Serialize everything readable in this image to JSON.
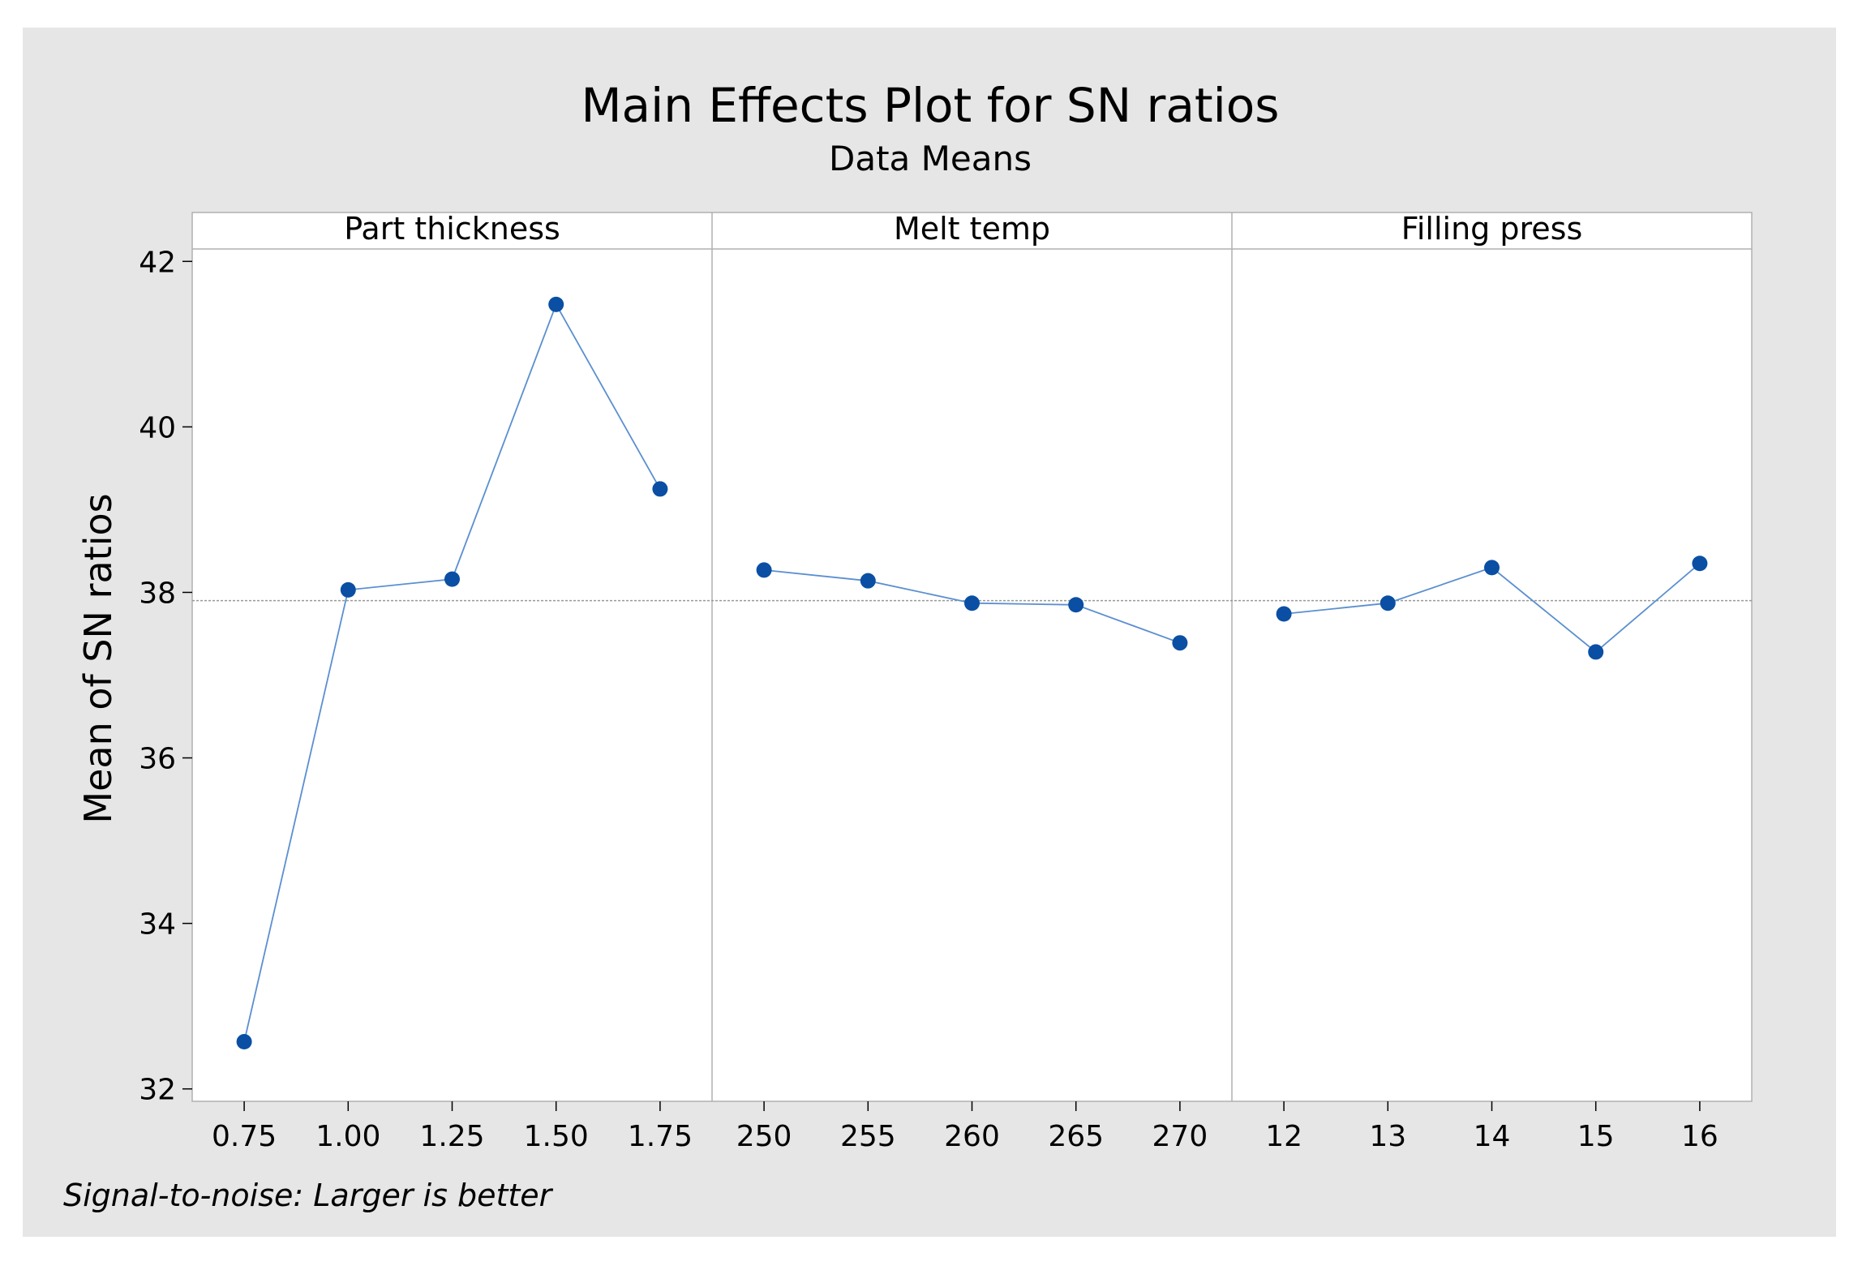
{
  "chart_data": {
    "type": "line",
    "title": "Main Effects Plot for SN ratios",
    "subtitle": "Data Means",
    "ylabel": "Mean of SN ratios",
    "footnote": "Signal-to-noise: Larger is better",
    "ylim": [
      31.85,
      42.15
    ],
    "yticks": [
      "32",
      "34",
      "36",
      "38",
      "40",
      "42"
    ],
    "overall_mean": 37.9,
    "colors": {
      "background": "#e6e6e6",
      "plot_area": "#ffffff",
      "line": "#5b8fd0",
      "marker": "#0a4fa3",
      "reference_line": "#999999",
      "grid_border": "#b0b0b0"
    },
    "panels": [
      {
        "name": "Part thickness",
        "levels": [
          "0.75",
          "1.00",
          "1.25",
          "1.50",
          "1.75"
        ],
        "values": [
          32.57,
          38.03,
          38.16,
          41.48,
          39.25
        ]
      },
      {
        "name": "Melt temp",
        "levels": [
          "250",
          "255",
          "260",
          "265",
          "270"
        ],
        "values": [
          38.27,
          38.14,
          37.87,
          37.85,
          37.39
        ]
      },
      {
        "name": "Filling press",
        "levels": [
          "12",
          "13",
          "14",
          "15",
          "16"
        ],
        "values": [
          37.74,
          37.87,
          38.3,
          37.28,
          38.35
        ]
      }
    ]
  }
}
